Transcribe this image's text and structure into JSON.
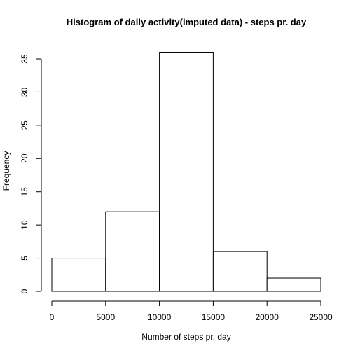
{
  "chart_data": {
    "type": "bar",
    "title": "Histogram of daily activity(imputed data) - steps pr. day",
    "xlabel": "Number of steps pr. day",
    "ylabel": "Frequency",
    "bins": [
      {
        "start": 0,
        "end": 5000,
        "count": 5
      },
      {
        "start": 5000,
        "end": 10000,
        "count": 12
      },
      {
        "start": 10000,
        "end": 15000,
        "count": 36
      },
      {
        "start": 15000,
        "end": 20000,
        "count": 6
      },
      {
        "start": 20000,
        "end": 25000,
        "count": 2
      }
    ],
    "xlim": [
      0,
      25000
    ],
    "ylim": [
      0,
      35
    ],
    "xticks": [
      0,
      5000,
      10000,
      15000,
      20000,
      25000
    ],
    "yticks": [
      0,
      5,
      10,
      15,
      20,
      25,
      30,
      35
    ],
    "grid": false,
    "legend": "none"
  }
}
